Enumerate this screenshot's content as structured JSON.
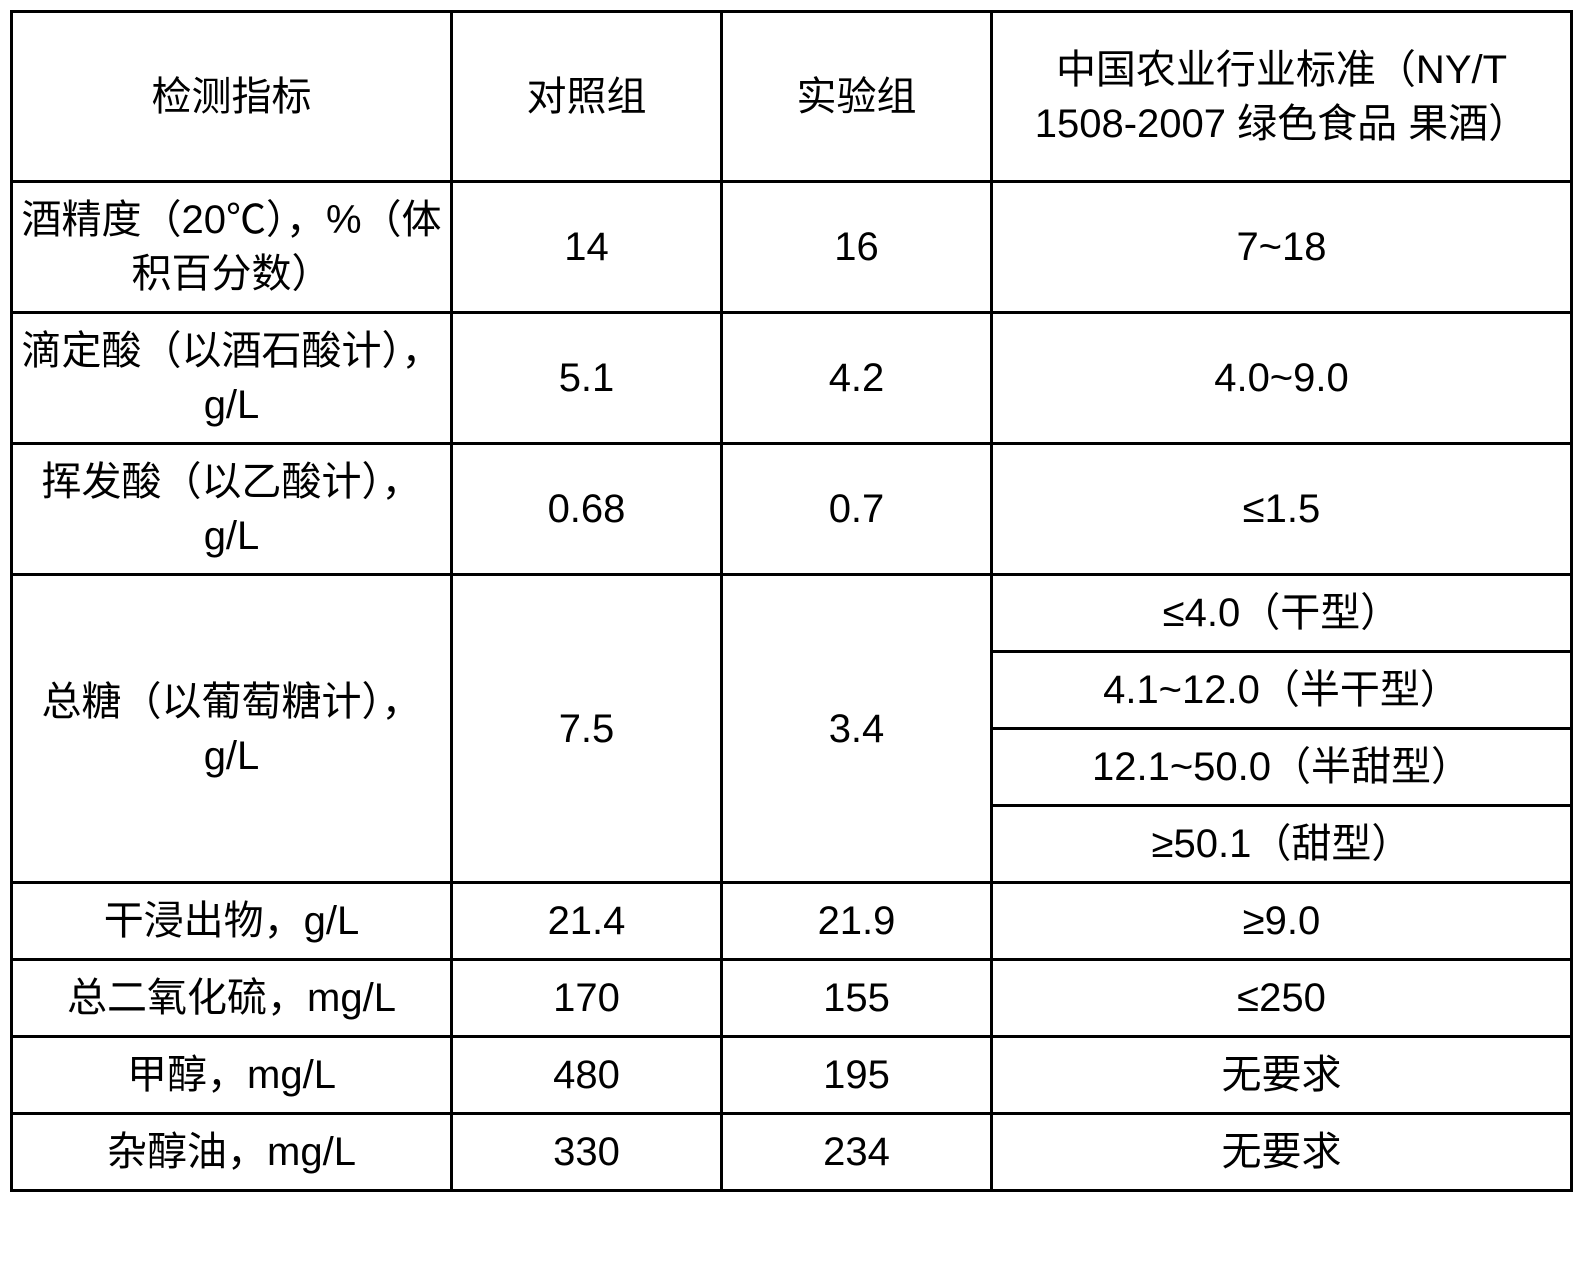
{
  "table": {
    "border_color": "#000000",
    "background_color": "#ffffff",
    "text_color": "#000000",
    "font_size_pt": 30,
    "columns": {
      "c1": "检测指标",
      "c2": "对照组",
      "c3": "实验组",
      "c4": "中国农业行业标准（NY/T 1508-2007 绿色食品 果酒）"
    },
    "rows": {
      "alcohol": {
        "label": "酒精度（20℃），%（体积百分数）",
        "control": "14",
        "exp": "16",
        "std": "7~18"
      },
      "titratable_acid": {
        "label": "滴定酸（以酒石酸计），g/L",
        "control": "5.1",
        "exp": "4.2",
        "std": "4.0~9.0"
      },
      "volatile_acid": {
        "label": "挥发酸（以乙酸计），g/L",
        "control": "0.68",
        "exp": "0.7",
        "std": "≤1.5"
      },
      "total_sugar": {
        "label": "总糖（以葡萄糖计），g/L",
        "control": "7.5",
        "exp": "3.4",
        "std1": "≤4.0（干型）",
        "std2": "4.1~12.0（半干型）",
        "std3": "12.1~50.0（半甜型）",
        "std4": "≥50.1（甜型）"
      },
      "dry_extract": {
        "label": "干浸出物，g/L",
        "control": "21.4",
        "exp": "21.9",
        "std": "≥9.0"
      },
      "total_so2": {
        "label": "总二氧化硫，mg/L",
        "control": "170",
        "exp": "155",
        "std": "≤250"
      },
      "methanol": {
        "label": "甲醇，mg/L",
        "control": "480",
        "exp": "195",
        "std": "无要求"
      },
      "fusel_oil": {
        "label": "杂醇油，mg/L",
        "control": "330",
        "exp": "234",
        "std": "无要求"
      }
    }
  }
}
